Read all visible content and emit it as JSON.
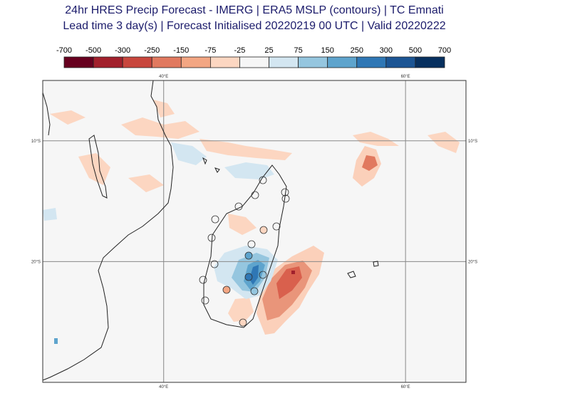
{
  "title": "24hr HRES Precip Forecast - IMERG | ERA5 MSLP (contours) | TC Emnati",
  "subtitle": "Lead time 3 day(s) | Forecast Initialised 20220219 00 UTC | Valid 20220222",
  "colorbar": {
    "ticks": [
      -700,
      -500,
      -300,
      -250,
      -150,
      -75,
      -25,
      25,
      75,
      150,
      250,
      300,
      500,
      700
    ],
    "colors": [
      "#67001f",
      "#a2202c",
      "#c8463d",
      "#e1795f",
      "#f3a683",
      "#fcd6c1",
      "#f6f6f6",
      "#d3e6f1",
      "#95c6df",
      "#5ea4cd",
      "#2f77b5",
      "#1c5594",
      "#07305f"
    ]
  },
  "map": {
    "xlim": [
      30,
      65
    ],
    "ylim": [
      -30,
      -5
    ],
    "xticks": [
      {
        "value": 40,
        "label": "40°E"
      },
      {
        "value": 60,
        "label": "60°E"
      }
    ],
    "yticks": [
      {
        "value": -10,
        "label": "10°S"
      },
      {
        "value": -20,
        "label": "20°S"
      }
    ]
  }
}
